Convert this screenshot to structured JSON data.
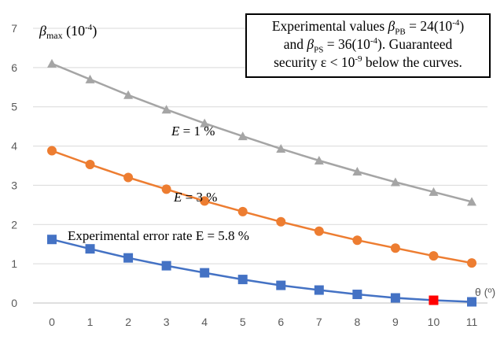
{
  "chart_data": {
    "type": "line",
    "x": [
      0,
      1,
      2,
      3,
      4,
      5,
      6,
      7,
      8,
      9,
      10,
      11
    ],
    "xlim": [
      0,
      11
    ],
    "ylim": [
      0,
      7
    ],
    "yticks": [
      0,
      1,
      2,
      3,
      4,
      5,
      6,
      7
    ],
    "grid": "horizontal",
    "ylabel": {
      "symbol": "β",
      "sub": "max",
      "unit": " (10",
      "exp": "-4",
      "close": ")"
    },
    "xlabel": "θ (º)",
    "series": [
      {
        "label_prefix": "E",
        "label_suffix": " = 1 %",
        "color": "#a5a5a5",
        "marker": "triangle",
        "values": [
          6.1,
          5.7,
          5.3,
          4.93,
          4.58,
          4.25,
          3.93,
          3.63,
          3.35,
          3.08,
          2.83,
          2.58
        ]
      },
      {
        "label_prefix": "E",
        "label_suffix": " = 3 %",
        "color": "#ed7d31",
        "marker": "circle",
        "values": [
          3.88,
          3.53,
          3.2,
          2.9,
          2.6,
          2.33,
          2.07,
          1.83,
          1.6,
          1.4,
          1.2,
          1.02
        ]
      },
      {
        "label_prefix": "Experimental error rate E",
        "label_suffix": " = 5.8 %",
        "color": "#4472c4",
        "marker": "square",
        "values": [
          1.62,
          1.38,
          1.15,
          0.95,
          0.77,
          0.6,
          0.45,
          0.33,
          0.22,
          0.13,
          0.07,
          0.03
        ]
      }
    ],
    "highlight": {
      "x": 10,
      "y": 0.07,
      "color": "#ff0000"
    },
    "annotation": {
      "line1": "Experimental values ",
      "beta1": "β",
      "sub1": "PB",
      "val1": " = 24(10",
      "exp1": "-4",
      "end1": ")",
      "line2a": "and ",
      "beta2": "β",
      "sub2": "PS",
      "val2": " = 36(10",
      "exp2": "-4",
      "end2": "). Guaranteed",
      "line3a": "security ε < 10",
      "exp3": "-9",
      "line3b": " below the curves."
    }
  }
}
